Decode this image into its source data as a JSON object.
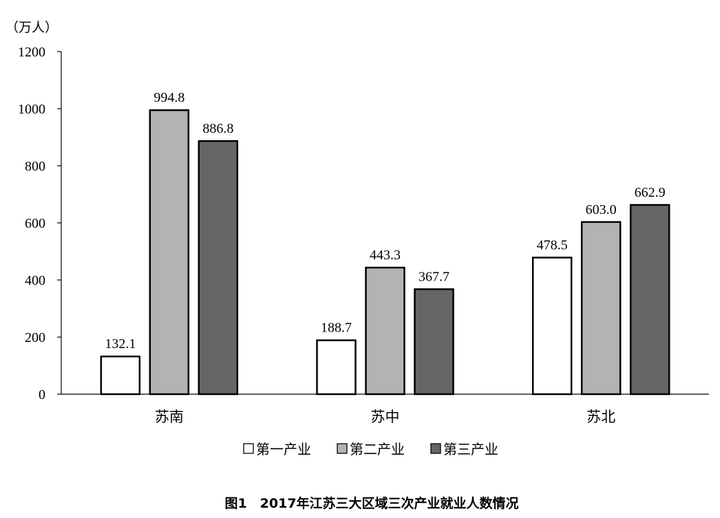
{
  "caption": "图1　2017年江苏三大区域三次产业就业人数情况",
  "colors": {
    "axis": "#000000",
    "bar_stroke": "#000000",
    "series": [
      "#ffffff",
      "#b3b3b3",
      "#666666"
    ]
  },
  "chart_data": {
    "type": "bar",
    "title": "",
    "unit_label": "（万人）",
    "xlabel": "",
    "ylabel": "",
    "categories": [
      "苏南",
      "苏中",
      "苏北"
    ],
    "series": [
      {
        "name": "第一产业",
        "values": [
          132.1,
          188.7,
          478.5
        ]
      },
      {
        "name": "第二产业",
        "values": [
          994.8,
          443.3,
          603.0
        ]
      },
      {
        "name": "第三产业",
        "values": [
          886.8,
          367.7,
          662.9
        ]
      }
    ],
    "ylim": [
      0,
      1200
    ],
    "yticks": [
      0,
      200,
      400,
      600,
      800,
      1000,
      1200
    ],
    "grid": false,
    "legend_position": "bottom",
    "data_label_decimals": 1
  }
}
